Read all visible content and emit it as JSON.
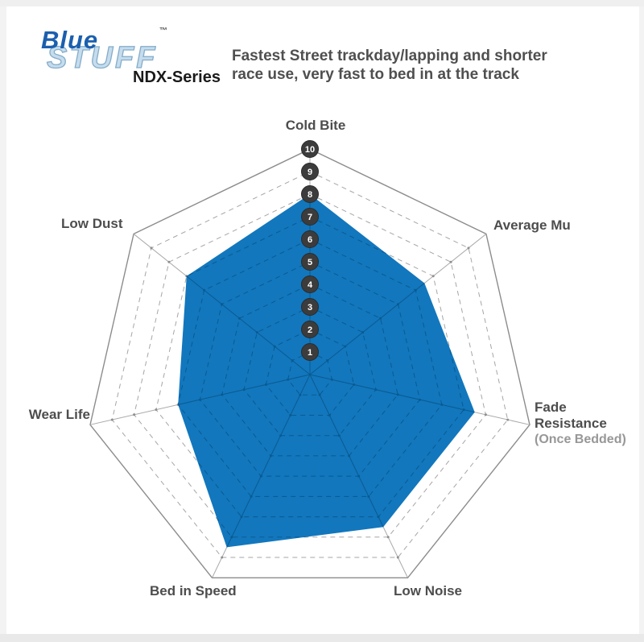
{
  "logo": {
    "blue": "Blue",
    "stuff": "STUFF",
    "trademark": "™",
    "series": "NDX-Series"
  },
  "header": {
    "line1": "Fastest Street trackday/lapping and shorter",
    "line2": "race use, very fast to bed in at the track"
  },
  "chart_data": {
    "type": "radar",
    "categories": [
      "Cold Bite",
      "Average Mu",
      "Fade Resistance (Once Bedded)",
      "Low Noise",
      "Bed in Speed",
      "Wear Life",
      "Low Dust"
    ],
    "values": [
      8,
      6.5,
      7.5,
      7.5,
      8.5,
      6,
      7
    ],
    "axis_min": 0,
    "axis_max": 10,
    "scale_ticks": [
      10,
      9,
      8,
      7,
      6,
      5,
      4,
      3,
      2,
      1
    ],
    "grid": {
      "spokes": 7,
      "inner_rings": "dashed heptagons at each integer 1-9",
      "outer_ring": "solid heptagon at 10"
    },
    "legend": "none"
  },
  "labels": {
    "cold_bite": "Cold Bite",
    "average_mu": "Average Mu",
    "fade_line1": "Fade",
    "fade_line2": "Resistance",
    "fade_line3": "(Once Bedded)",
    "low_noise": "Low Noise",
    "bed_in_speed": "Bed in Speed",
    "wear_life": "Wear Life",
    "low_dust": "Low Dust"
  },
  "colors": {
    "polygon_fill": "#1277BD",
    "polygon_grid": "#0A5A90",
    "ring_line": "#A6A6A6",
    "outer_ring": "#8C8C8C",
    "spoke": "#AAAAAA",
    "grid_dot": "#8F8F8F",
    "tick_circle_fill": "#3C3C3C",
    "tick_circle_edge": "#2B2B2B",
    "tick_number": "#FFFFFF",
    "label_text": "#4D4D4D",
    "label_muted": "#979797",
    "header_text": "#4F4F4F",
    "logo_blue": "#1B5FAE",
    "series_text": "#1A1A1A"
  }
}
